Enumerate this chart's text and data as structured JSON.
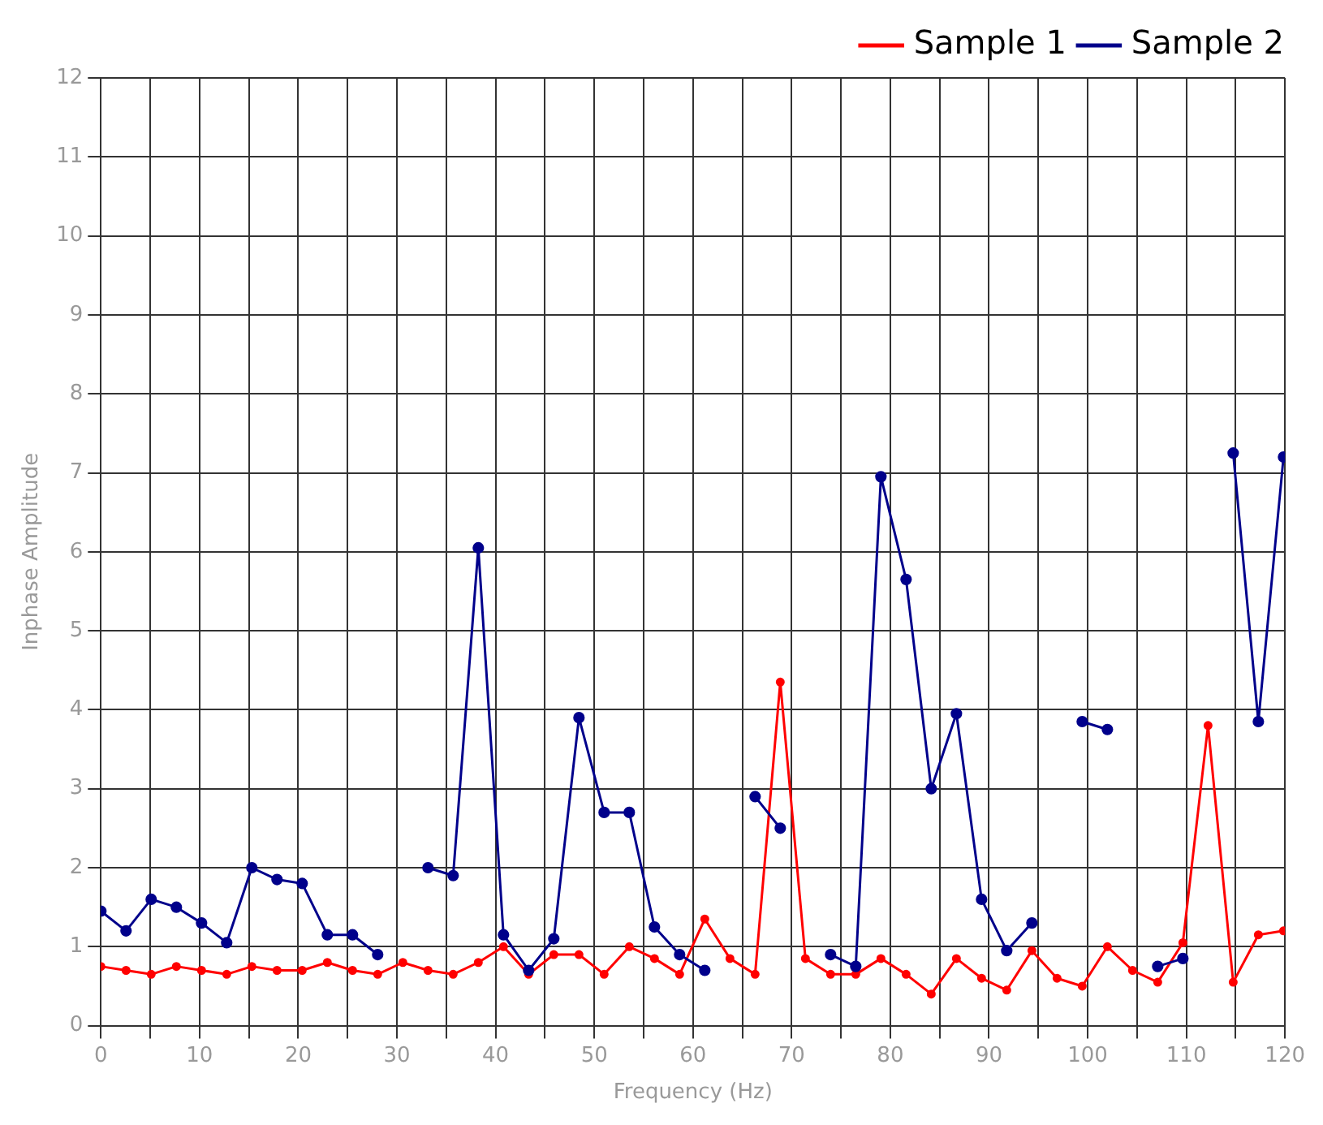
{
  "chart_data": {
    "type": "line",
    "xlabel": "Frequency (Hz)",
    "ylabel": "Inphase Amplitude",
    "x": [
      0,
      2.55,
      5.1,
      7.65,
      10.2,
      12.75,
      15.3,
      17.85,
      20.4,
      22.95,
      25.5,
      28.05,
      30.6,
      33.15,
      35.7,
      38.25,
      40.8,
      43.35,
      45.9,
      48.45,
      51,
      53.55,
      56.1,
      58.65,
      61.2,
      63.75,
      66.3,
      68.85,
      71.4,
      73.95,
      76.5,
      79.05,
      81.6,
      84.15,
      86.7,
      89.25,
      91.8,
      94.35,
      96.9,
      99.45,
      102,
      104.55,
      107.1,
      109.65,
      112.2,
      114.75,
      117.3,
      119.85
    ],
    "series": [
      {
        "name": "Sample 1",
        "color": "#ff0000",
        "values": [
          0.75,
          0.7,
          0.65,
          0.75,
          0.7,
          0.65,
          0.75,
          0.7,
          0.7,
          0.8,
          0.7,
          0.65,
          0.8,
          0.7,
          0.65,
          0.8,
          1.0,
          0.65,
          0.9,
          0.9,
          0.65,
          1.0,
          0.85,
          0.65,
          1.35,
          0.85,
          0.65,
          4.35,
          0.85,
          0.65,
          0.65,
          0.85,
          0.65,
          0.4,
          0.85,
          0.6,
          0.45,
          0.95,
          0.6,
          0.5,
          1.0,
          0.7,
          0.55,
          1.05,
          3.8,
          0.55,
          1.15,
          1.2
        ]
      },
      {
        "name": "Sample 2",
        "color": "#00008b",
        "values": [
          1.45,
          1.2,
          1.6,
          1.5,
          1.3,
          1.05,
          2.0,
          1.85,
          1.8,
          1.15,
          1.15,
          0.9,
          null,
          2.0,
          1.9,
          6.05,
          1.15,
          0.7,
          1.1,
          3.9,
          2.7,
          2.7,
          1.25,
          0.9,
          0.7,
          null,
          2.9,
          2.5,
          null,
          0.9,
          0.75,
          6.95,
          5.65,
          3.0,
          3.95,
          1.6,
          0.95,
          1.3,
          null,
          3.85,
          3.75,
          null,
          0.75,
          0.85,
          null,
          7.25,
          3.85,
          7.2
        ]
      }
    ],
    "xlim": [
      0,
      120
    ],
    "xticks": [
      0,
      {
        "value": 5,
        "label": null
      },
      10,
      {
        "value": 15,
        "label": null
      },
      20,
      {
        "value": 25,
        "label": null
      },
      30,
      {
        "value": 35,
        "label": null
      },
      40,
      {
        "value": 45,
        "label": null
      },
      50,
      {
        "value": 55,
        "label": null
      },
      60,
      {
        "value": 65,
        "label": null
      },
      70,
      {
        "value": 75,
        "label": null
      },
      80,
      {
        "value": 85,
        "label": null
      },
      90,
      {
        "value": 95,
        "label": null
      },
      100,
      {
        "value": 105,
        "label": null
      },
      110,
      {
        "value": 115,
        "label": null
      },
      120
    ],
    "ylim": [
      0,
      12
    ],
    "yticks": [
      0,
      1,
      2,
      3,
      4,
      5,
      6,
      7,
      8,
      9,
      10,
      11,
      12
    ],
    "grid": true,
    "legend": "top right",
    "marker": "circle",
    "line_style": "solid"
  }
}
